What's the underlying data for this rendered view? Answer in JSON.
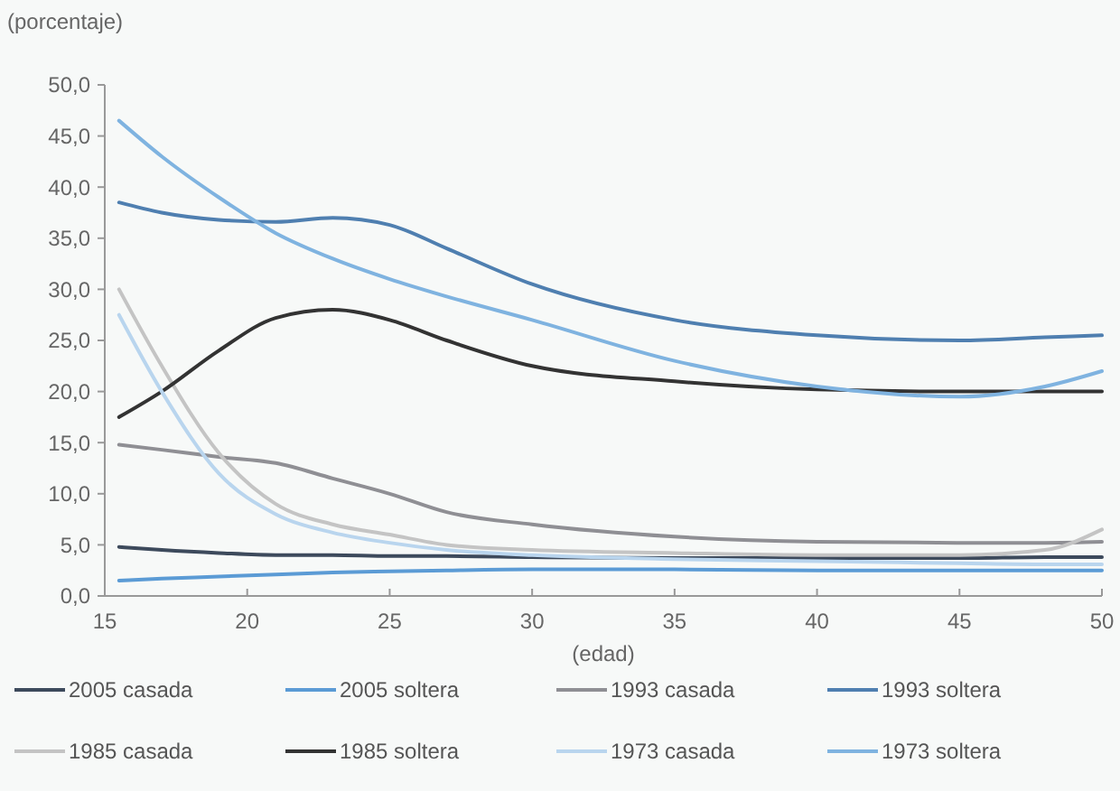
{
  "chart_data": {
    "type": "line",
    "xlabel": "(edad)",
    "ylabel": "(porcentaje)",
    "xlim": [
      15,
      50
    ],
    "xticks": [
      15,
      20,
      25,
      30,
      35,
      40,
      45,
      50
    ],
    "ylim": [
      0,
      50
    ],
    "yticks": [
      {
        "value": 0,
        "label": "0,0"
      },
      {
        "value": 5,
        "label": "5,0"
      },
      {
        "value": 10,
        "label": "10,0"
      },
      {
        "value": 15,
        "label": "15,0"
      },
      {
        "value": 20,
        "label": "20,0"
      },
      {
        "value": 25,
        "label": "25,0"
      },
      {
        "value": 30,
        "label": "30,0"
      },
      {
        "value": 35,
        "label": "35,0"
      },
      {
        "value": 40,
        "label": "40,0"
      },
      {
        "value": 45,
        "label": "45,0"
      },
      {
        "value": 50,
        "label": "50,0"
      }
    ],
    "grid": false,
    "legend": "bottom",
    "marker": "none",
    "line_style": "solid",
    "x": [
      15.5,
      17,
      19,
      21,
      23,
      25,
      27,
      30,
      35,
      40,
      45,
      48,
      50
    ],
    "series": [
      {
        "name": "2005 casada",
        "color": "#3d4a5c",
        "values": [
          4.8,
          4.5,
          4.2,
          4.0,
          4.0,
          3.9,
          3.9,
          3.8,
          3.7,
          3.7,
          3.7,
          3.8,
          3.8
        ]
      },
      {
        "name": "2005 soltera",
        "color": "#5b9bd5",
        "values": [
          1.5,
          1.7,
          1.9,
          2.1,
          2.3,
          2.4,
          2.5,
          2.6,
          2.6,
          2.5,
          2.5,
          2.5,
          2.5
        ]
      },
      {
        "name": "1993 casada",
        "color": "#8f8f94",
        "values": [
          14.8,
          14.3,
          13.6,
          13.0,
          11.5,
          10.0,
          8.2,
          7.0,
          5.8,
          5.3,
          5.2,
          5.2,
          5.3
        ]
      },
      {
        "name": "1993 soltera",
        "color": "#4f7fb0",
        "values": [
          38.5,
          37.5,
          36.8,
          36.6,
          37.0,
          36.3,
          34.0,
          30.5,
          27.0,
          25.5,
          25.0,
          25.3,
          25.5
        ]
      },
      {
        "name": "1985 casada",
        "color": "#c4c4c4",
        "values": [
          30.0,
          22.5,
          14.0,
          9.0,
          7.0,
          6.0,
          5.0,
          4.5,
          4.2,
          4.0,
          4.0,
          4.5,
          6.5
        ]
      },
      {
        "name": "1985 soltera",
        "color": "#333333",
        "values": [
          17.5,
          20.0,
          24.0,
          27.2,
          28.0,
          27.0,
          25.0,
          22.5,
          21.0,
          20.2,
          20.0,
          20.0,
          20.0
        ]
      },
      {
        "name": "1973 casada",
        "color": "#b9d5ee",
        "values": [
          27.5,
          20.0,
          12.0,
          8.0,
          6.2,
          5.2,
          4.5,
          4.0,
          3.6,
          3.4,
          3.2,
          3.1,
          3.1
        ]
      },
      {
        "name": "1973 soltera",
        "color": "#7fb3e0",
        "values": [
          46.5,
          43.0,
          39.0,
          35.5,
          33.0,
          31.0,
          29.3,
          27.0,
          23.0,
          20.5,
          19.5,
          20.5,
          22.0
        ]
      }
    ]
  }
}
